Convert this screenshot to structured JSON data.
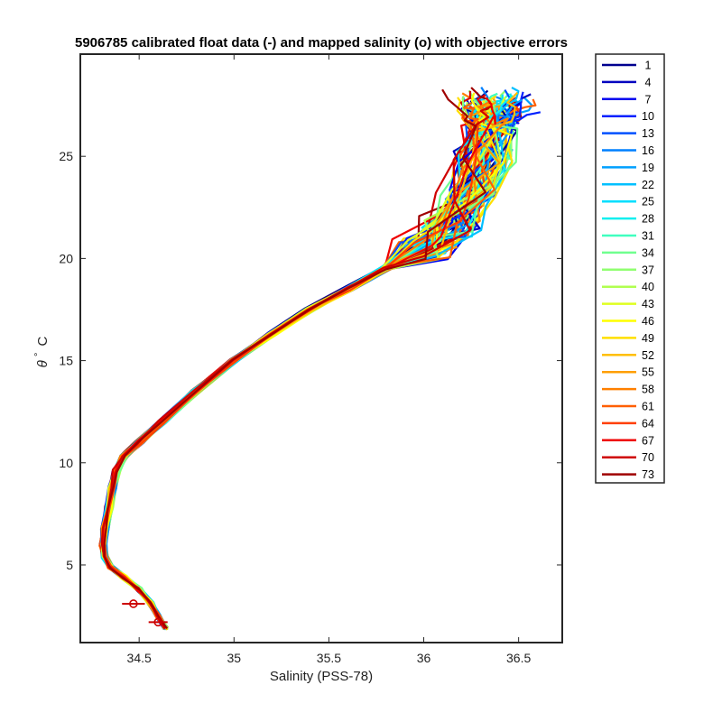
{
  "chart_data": {
    "type": "line",
    "title": "5906785 calibrated float data (-) and mapped salinity (o) with objective errors",
    "xlabel": "Salinity (PSS-78)",
    "ylabel_symbol": "θ",
    "ylabel_degree": "°",
    "ylabel_unit": "C",
    "xlim": [
      34.19,
      36.73
    ],
    "ylim": [
      1.2,
      30.0
    ],
    "xticks": [
      "34.5",
      "35",
      "35.5",
      "36",
      "36.5"
    ],
    "xtick_values": [
      34.5,
      35.0,
      35.5,
      36.0,
      36.5
    ],
    "yticks": [
      "5",
      "10",
      "15",
      "20",
      "25"
    ],
    "ytick_values": [
      5,
      10,
      15,
      20,
      25
    ],
    "grid": false,
    "legend_position": "outside-right",
    "colormap": "jet",
    "legend": [
      "1",
      "4",
      "7",
      "10",
      "13",
      "16",
      "19",
      "22",
      "25",
      "28",
      "31",
      "34",
      "37",
      "40",
      "43",
      "46",
      "49",
      "52",
      "55",
      "58",
      "61",
      "64",
      "67",
      "70",
      "73"
    ],
    "legend_colors": [
      "#00008f",
      "#0000bf",
      "#0000ef",
      "#0020ff",
      "#0050ff",
      "#0080ff",
      "#00a0ff",
      "#00c0ff",
      "#00dfff",
      "#10efef",
      "#40ffbf",
      "#70ff8f",
      "#90ff70",
      "#b0ff50",
      "#dfff20",
      "#ffff00",
      "#ffdf00",
      "#ffbf00",
      "#ff9f00",
      "#ff7f00",
      "#ff5f00",
      "#ff3f00",
      "#ef0000",
      "#cf0000",
      "#9f0000"
    ],
    "base_profile": {
      "salinity": [
        34.64,
        34.6,
        34.56,
        34.5,
        34.42,
        34.35,
        34.32,
        34.31,
        34.32,
        34.34,
        34.36,
        34.38,
        34.42,
        34.5,
        34.62,
        34.8,
        35.0,
        35.2,
        35.4,
        35.6,
        35.8,
        36.0,
        36.15,
        36.25,
        36.32,
        36.35
      ],
      "theta": [
        1.9,
        2.5,
        3.1,
        3.8,
        4.4,
        4.9,
        5.4,
        6.0,
        6.8,
        7.8,
        8.8,
        9.6,
        10.3,
        11.0,
        12.0,
        13.5,
        15.0,
        16.3,
        17.5,
        18.5,
        19.5,
        20.5,
        21.6,
        23.0,
        24.8,
        26.5
      ]
    },
    "mapped_salinity_points": {
      "salinity": [
        34.47,
        34.6
      ],
      "theta": [
        3.1,
        2.2
      ],
      "objective_error": [
        0.06,
        0.05
      ]
    }
  }
}
